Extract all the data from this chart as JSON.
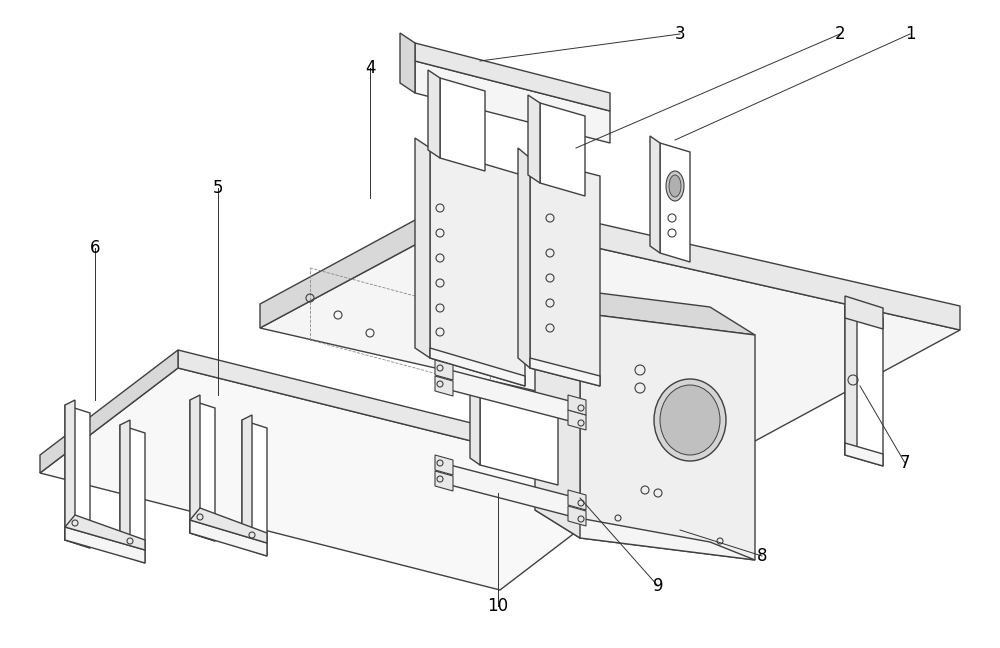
{
  "background_color": "#ffffff",
  "line_color": "#404040",
  "line_width": 1.0,
  "label_color": "#000000",
  "label_fontsize": 12,
  "figsize": [
    10.0,
    6.48
  ],
  "dpi": 100,
  "face_light": "#f5f5f5",
  "face_mid": "#e8e8e8",
  "face_dark": "#d8d8d8",
  "face_white": "#ffffff"
}
